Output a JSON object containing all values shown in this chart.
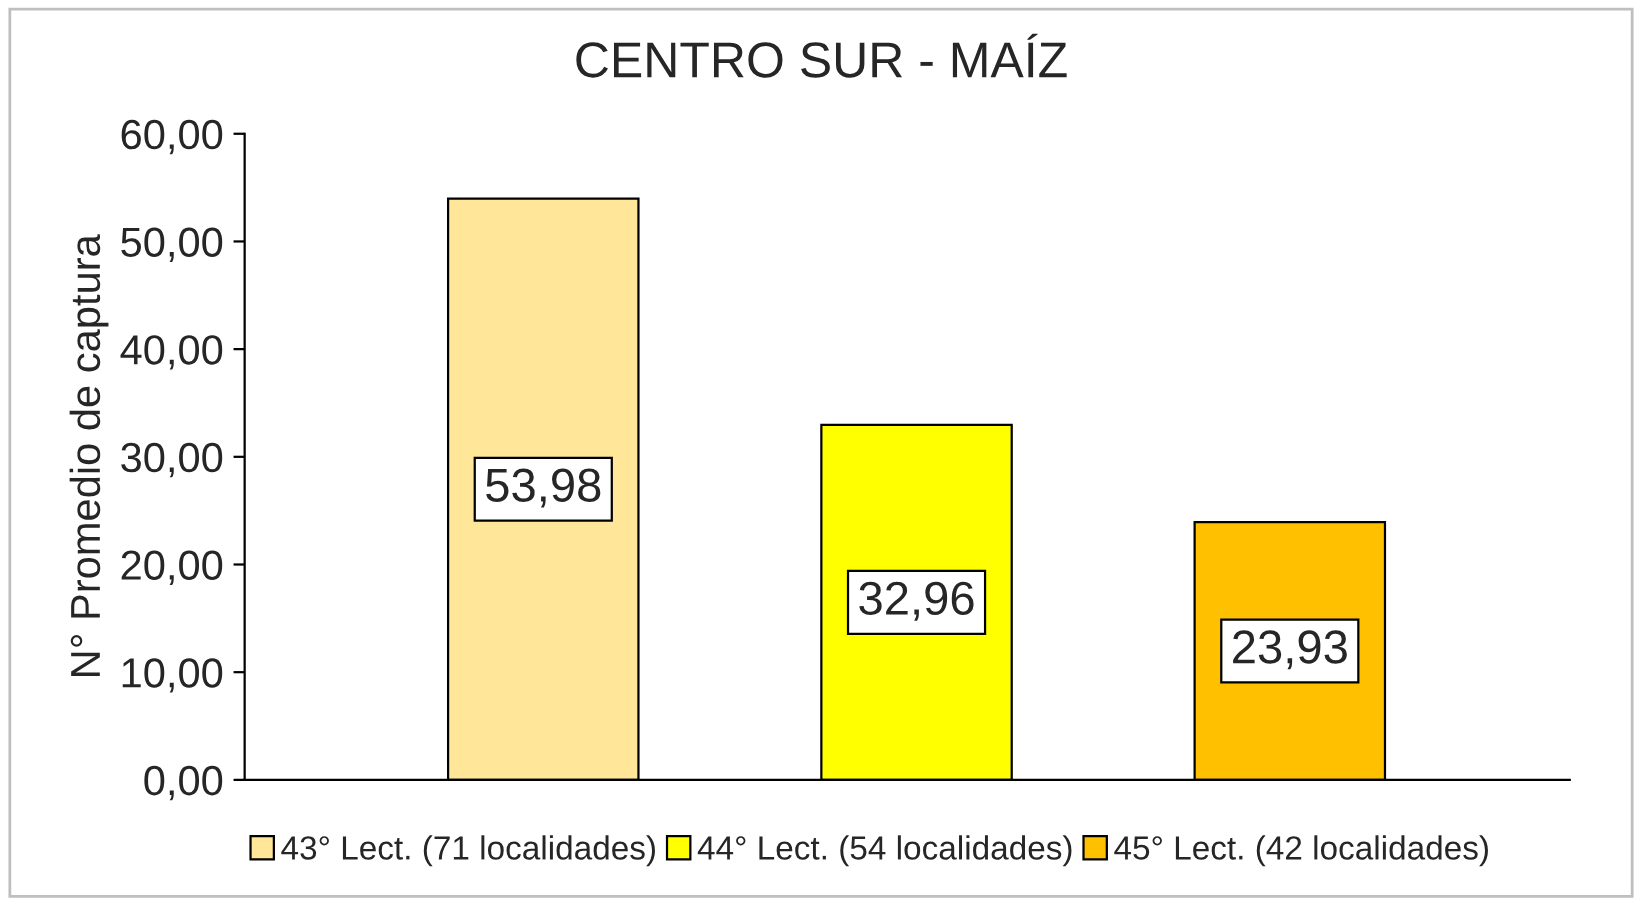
{
  "chart_data": {
    "type": "bar",
    "title": "CENTRO SUR - MAÍZ",
    "ylabel": "N° Promedio de captura",
    "categories": [
      null,
      null,
      null
    ],
    "series": [
      {
        "name": "43° Lect. (71 localidades)",
        "color": "#ffe699",
        "values": [
          53.98,
          null,
          null
        ],
        "value_labels": [
          "53,98",
          null,
          null
        ]
      },
      {
        "name": "44° Lect. (54 localidades)",
        "color": "#ffff00",
        "values": [
          null,
          32.96,
          null
        ],
        "value_labels": [
          null,
          "32,96",
          null
        ]
      },
      {
        "name": "45° Lect. (42 localidades)",
        "color": "#ffc000",
        "values": [
          null,
          null,
          23.93
        ],
        "value_labels": [
          null,
          null,
          "23,93"
        ]
      }
    ],
    "ylim": [
      0,
      60
    ],
    "yticks": [
      {
        "value": 0,
        "label": "0,00"
      },
      {
        "value": 10,
        "label": "10,00"
      },
      {
        "value": 20,
        "label": "20,00"
      },
      {
        "value": 30,
        "label": "30,00"
      },
      {
        "value": 40,
        "label": "40,00"
      },
      {
        "value": 50,
        "label": "50,00"
      },
      {
        "value": 60,
        "label": "60,00"
      }
    ],
    "grid": false,
    "legend": "bottom"
  }
}
